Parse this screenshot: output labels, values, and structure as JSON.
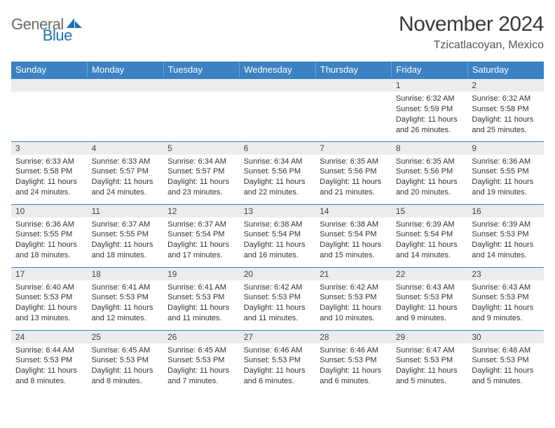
{
  "logo": {
    "general": "General",
    "blue": "Blue"
  },
  "title": "November 2024",
  "subtitle": "Tzicatlacoyan, Mexico",
  "colors": {
    "header_bg": "#3b82c4",
    "header_text": "#ffffff",
    "daynum_bg": "#ececec",
    "rule": "#3b82c4",
    "logo_gray": "#6a6a6a",
    "logo_blue": "#1f6fb2"
  },
  "day_headers": [
    "Sunday",
    "Monday",
    "Tuesday",
    "Wednesday",
    "Thursday",
    "Friday",
    "Saturday"
  ],
  "weeks": [
    [
      {
        "n": "",
        "sr": "",
        "ss": "",
        "dl": ""
      },
      {
        "n": "",
        "sr": "",
        "ss": "",
        "dl": ""
      },
      {
        "n": "",
        "sr": "",
        "ss": "",
        "dl": ""
      },
      {
        "n": "",
        "sr": "",
        "ss": "",
        "dl": ""
      },
      {
        "n": "",
        "sr": "",
        "ss": "",
        "dl": ""
      },
      {
        "n": "1",
        "sr": "Sunrise: 6:32 AM",
        "ss": "Sunset: 5:59 PM",
        "dl": "Daylight: 11 hours and 26 minutes."
      },
      {
        "n": "2",
        "sr": "Sunrise: 6:32 AM",
        "ss": "Sunset: 5:58 PM",
        "dl": "Daylight: 11 hours and 25 minutes."
      }
    ],
    [
      {
        "n": "3",
        "sr": "Sunrise: 6:33 AM",
        "ss": "Sunset: 5:58 PM",
        "dl": "Daylight: 11 hours and 24 minutes."
      },
      {
        "n": "4",
        "sr": "Sunrise: 6:33 AM",
        "ss": "Sunset: 5:57 PM",
        "dl": "Daylight: 11 hours and 24 minutes."
      },
      {
        "n": "5",
        "sr": "Sunrise: 6:34 AM",
        "ss": "Sunset: 5:57 PM",
        "dl": "Daylight: 11 hours and 23 minutes."
      },
      {
        "n": "6",
        "sr": "Sunrise: 6:34 AM",
        "ss": "Sunset: 5:56 PM",
        "dl": "Daylight: 11 hours and 22 minutes."
      },
      {
        "n": "7",
        "sr": "Sunrise: 6:35 AM",
        "ss": "Sunset: 5:56 PM",
        "dl": "Daylight: 11 hours and 21 minutes."
      },
      {
        "n": "8",
        "sr": "Sunrise: 6:35 AM",
        "ss": "Sunset: 5:56 PM",
        "dl": "Daylight: 11 hours and 20 minutes."
      },
      {
        "n": "9",
        "sr": "Sunrise: 6:36 AM",
        "ss": "Sunset: 5:55 PM",
        "dl": "Daylight: 11 hours and 19 minutes."
      }
    ],
    [
      {
        "n": "10",
        "sr": "Sunrise: 6:36 AM",
        "ss": "Sunset: 5:55 PM",
        "dl": "Daylight: 11 hours and 18 minutes."
      },
      {
        "n": "11",
        "sr": "Sunrise: 6:37 AM",
        "ss": "Sunset: 5:55 PM",
        "dl": "Daylight: 11 hours and 18 minutes."
      },
      {
        "n": "12",
        "sr": "Sunrise: 6:37 AM",
        "ss": "Sunset: 5:54 PM",
        "dl": "Daylight: 11 hours and 17 minutes."
      },
      {
        "n": "13",
        "sr": "Sunrise: 6:38 AM",
        "ss": "Sunset: 5:54 PM",
        "dl": "Daylight: 11 hours and 16 minutes."
      },
      {
        "n": "14",
        "sr": "Sunrise: 6:38 AM",
        "ss": "Sunset: 5:54 PM",
        "dl": "Daylight: 11 hours and 15 minutes."
      },
      {
        "n": "15",
        "sr": "Sunrise: 6:39 AM",
        "ss": "Sunset: 5:54 PM",
        "dl": "Daylight: 11 hours and 14 minutes."
      },
      {
        "n": "16",
        "sr": "Sunrise: 6:39 AM",
        "ss": "Sunset: 5:53 PM",
        "dl": "Daylight: 11 hours and 14 minutes."
      }
    ],
    [
      {
        "n": "17",
        "sr": "Sunrise: 6:40 AM",
        "ss": "Sunset: 5:53 PM",
        "dl": "Daylight: 11 hours and 13 minutes."
      },
      {
        "n": "18",
        "sr": "Sunrise: 6:41 AM",
        "ss": "Sunset: 5:53 PM",
        "dl": "Daylight: 11 hours and 12 minutes."
      },
      {
        "n": "19",
        "sr": "Sunrise: 6:41 AM",
        "ss": "Sunset: 5:53 PM",
        "dl": "Daylight: 11 hours and 11 minutes."
      },
      {
        "n": "20",
        "sr": "Sunrise: 6:42 AM",
        "ss": "Sunset: 5:53 PM",
        "dl": "Daylight: 11 hours and 11 minutes."
      },
      {
        "n": "21",
        "sr": "Sunrise: 6:42 AM",
        "ss": "Sunset: 5:53 PM",
        "dl": "Daylight: 11 hours and 10 minutes."
      },
      {
        "n": "22",
        "sr": "Sunrise: 6:43 AM",
        "ss": "Sunset: 5:53 PM",
        "dl": "Daylight: 11 hours and 9 minutes."
      },
      {
        "n": "23",
        "sr": "Sunrise: 6:43 AM",
        "ss": "Sunset: 5:53 PM",
        "dl": "Daylight: 11 hours and 9 minutes."
      }
    ],
    [
      {
        "n": "24",
        "sr": "Sunrise: 6:44 AM",
        "ss": "Sunset: 5:53 PM",
        "dl": "Daylight: 11 hours and 8 minutes."
      },
      {
        "n": "25",
        "sr": "Sunrise: 6:45 AM",
        "ss": "Sunset: 5:53 PM",
        "dl": "Daylight: 11 hours and 8 minutes."
      },
      {
        "n": "26",
        "sr": "Sunrise: 6:45 AM",
        "ss": "Sunset: 5:53 PM",
        "dl": "Daylight: 11 hours and 7 minutes."
      },
      {
        "n": "27",
        "sr": "Sunrise: 6:46 AM",
        "ss": "Sunset: 5:53 PM",
        "dl": "Daylight: 11 hours and 6 minutes."
      },
      {
        "n": "28",
        "sr": "Sunrise: 6:46 AM",
        "ss": "Sunset: 5:53 PM",
        "dl": "Daylight: 11 hours and 6 minutes."
      },
      {
        "n": "29",
        "sr": "Sunrise: 6:47 AM",
        "ss": "Sunset: 5:53 PM",
        "dl": "Daylight: 11 hours and 5 minutes."
      },
      {
        "n": "30",
        "sr": "Sunrise: 6:48 AM",
        "ss": "Sunset: 5:53 PM",
        "dl": "Daylight: 11 hours and 5 minutes."
      }
    ]
  ]
}
